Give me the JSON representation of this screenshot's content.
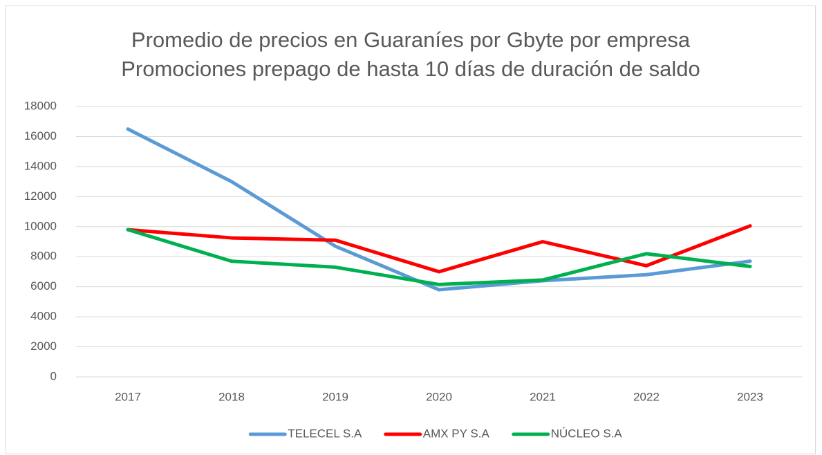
{
  "chart_data": {
    "type": "line",
    "title": [
      "Promedio de precios en Guaraníes por Gbyte por empresa",
      "Promociones prepago de hasta 10 días de duración de saldo"
    ],
    "categories": [
      "2017",
      "2018",
      "2019",
      "2020",
      "2021",
      "2022",
      "2023"
    ],
    "series": [
      {
        "name": "TELECEL S.A",
        "color": "#5b9bd5",
        "values": [
          16500,
          13000,
          8700,
          5800,
          6400,
          6800,
          7700
        ]
      },
      {
        "name": "AMX PY S.A",
        "color": "#ff0000",
        "values": [
          9800,
          9250,
          9100,
          7000,
          9000,
          7400,
          10050
        ]
      },
      {
        "name": "NÚCLEO S.A",
        "color": "#00b050",
        "values": [
          9800,
          7700,
          7300,
          6150,
          6450,
          8200,
          7350
        ]
      }
    ],
    "ylim": [
      0,
      18000
    ],
    "yticks": [
      0,
      2000,
      4000,
      6000,
      8000,
      10000,
      12000,
      14000,
      16000,
      18000
    ],
    "grid": true,
    "legend": "bottom"
  }
}
